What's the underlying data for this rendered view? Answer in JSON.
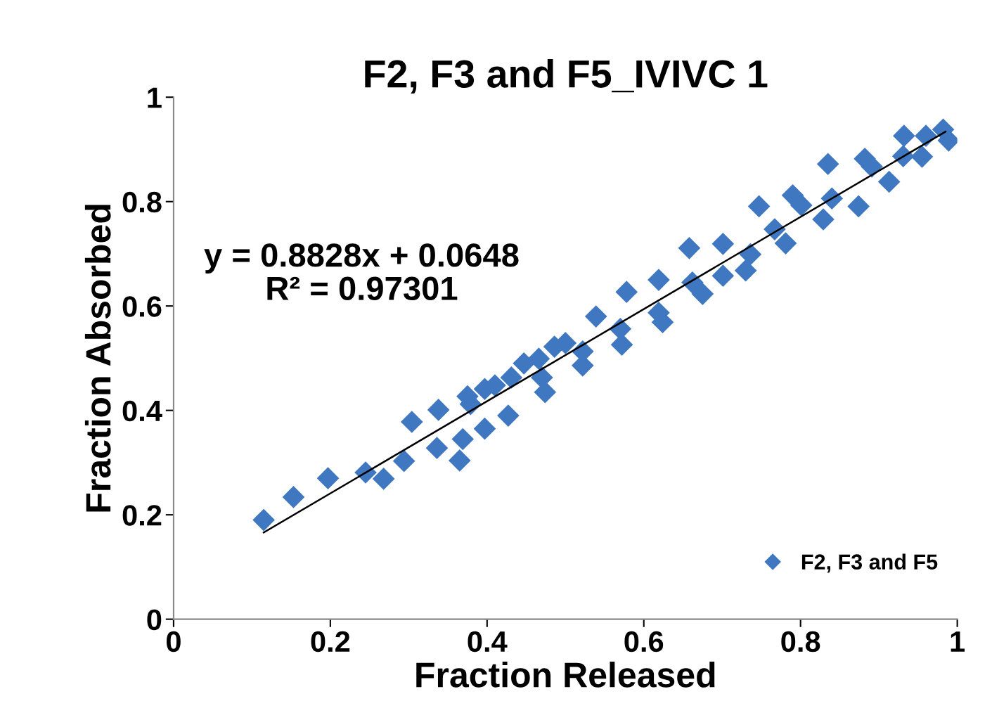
{
  "chart_data": {
    "type": "scatter",
    "title": "F2, F3 and F5_IVIVC 1",
    "xlabel": "Fraction Released",
    "ylabel": "Fraction Absorbed",
    "xlim": [
      0,
      1
    ],
    "ylim": [
      0,
      1
    ],
    "xticks": [
      0,
      0.2,
      0.4,
      0.6,
      0.8,
      1
    ],
    "yticks": [
      0,
      0.2,
      0.4,
      0.6,
      0.8,
      1
    ],
    "grid": false,
    "legend": "bottom right",
    "marker": "diamond",
    "annotations": [
      "y = 0.8828x + 0.0648\nR² = 0.97301"
    ],
    "series": [
      {
        "name": "F2, F3 and F5",
        "color": "#3f78c1",
        "x": [
          0.115,
          0.153,
          0.197,
          0.245,
          0.268,
          0.294,
          0.304,
          0.338,
          0.336,
          0.365,
          0.369,
          0.375,
          0.379,
          0.397,
          0.397,
          0.41,
          0.427,
          0.431,
          0.447,
          0.466,
          0.47,
          0.474,
          0.486,
          0.5,
          0.522,
          0.522,
          0.539,
          0.57,
          0.572,
          0.578,
          0.619,
          0.619,
          0.624,
          0.658,
          0.662,
          0.675,
          0.701,
          0.701,
          0.73,
          0.736,
          0.747,
          0.767,
          0.781,
          0.79,
          0.801,
          0.829,
          0.835,
          0.84,
          0.874,
          0.882,
          0.891,
          0.913,
          0.932,
          0.931,
          0.955,
          0.96,
          0.982,
          0.989
        ],
        "values": [
          0.19,
          0.234,
          0.27,
          0.281,
          0.269,
          0.303,
          0.378,
          0.401,
          0.328,
          0.304,
          0.345,
          0.427,
          0.412,
          0.365,
          0.441,
          0.448,
          0.39,
          0.463,
          0.49,
          0.499,
          0.463,
          0.435,
          0.522,
          0.529,
          0.513,
          0.486,
          0.58,
          0.556,
          0.526,
          0.627,
          0.65,
          0.587,
          0.569,
          0.711,
          0.645,
          0.623,
          0.719,
          0.658,
          0.668,
          0.699,
          0.791,
          0.747,
          0.72,
          0.812,
          0.793,
          0.766,
          0.872,
          0.806,
          0.791,
          0.882,
          0.867,
          0.838,
          0.926,
          0.887,
          0.886,
          0.926,
          0.938,
          0.917
        ]
      },
      {
        "type": "line",
        "color": "#000000",
        "marker": "none",
        "x": [
          0.115,
          0.985
        ],
        "values": [
          0.166,
          0.934
        ]
      }
    ]
  }
}
